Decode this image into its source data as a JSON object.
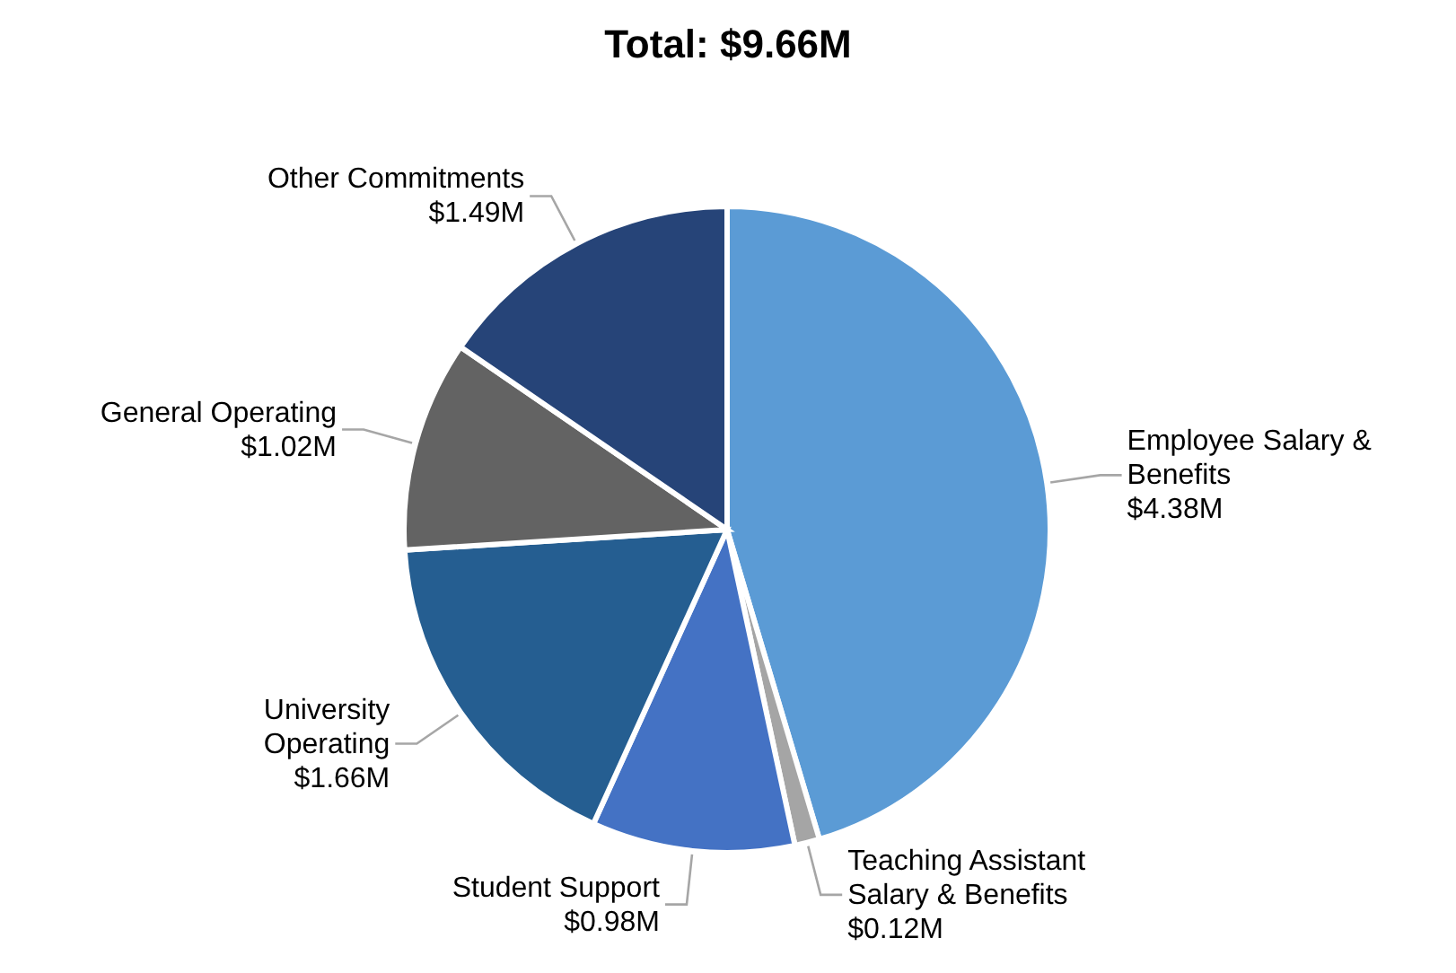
{
  "chart_data": {
    "type": "pie",
    "title": "Total: $9.66M",
    "categories": [
      "Employee Salary & Benefits",
      "Teaching Assistant Salary & Benefits",
      "Student Support",
      "University Operating",
      "General Operating",
      "Other Commitments"
    ],
    "values": [
      4.38,
      0.12,
      0.98,
      1.66,
      1.02,
      1.49
    ],
    "value_labels": [
      "$4.38M",
      "$0.12M",
      "$0.98M",
      "$1.66M",
      "$1.02M",
      "$1.49M"
    ],
    "colors": [
      "#5b9bd5",
      "#a5a5a5",
      "#4472c4",
      "#255e91",
      "#636363",
      "#264478"
    ],
    "legend": false
  }
}
